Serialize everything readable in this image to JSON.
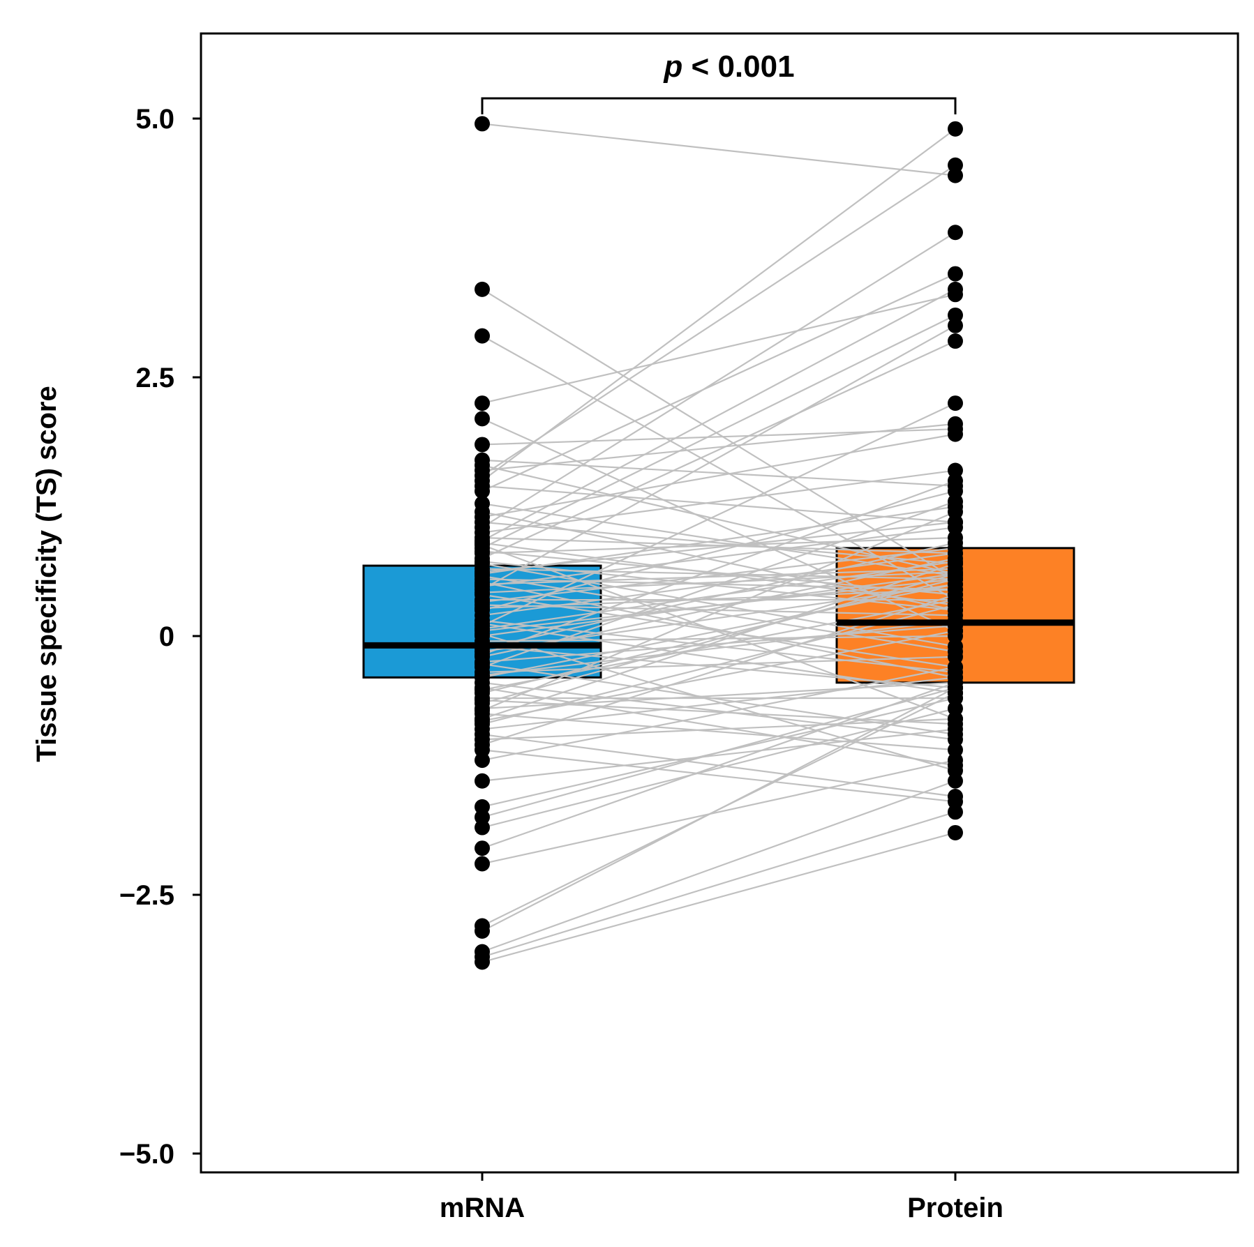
{
  "chart_data": {
    "type": "box",
    "title": "",
    "xlabel": "",
    "ylabel": "Tissue specificity (TS) score",
    "ylim": [
      -5.0,
      5.6
    ],
    "yticks": [
      5.0,
      2.5,
      0,
      -2.5,
      -5.0
    ],
    "ytick_labels": [
      "5.0",
      "2.5",
      "0",
      "−2.5",
      "−5.0"
    ],
    "categories": [
      "mRNA",
      "Protein"
    ],
    "significance": {
      "italic": "p",
      "text": " < 0.001"
    },
    "colors": {
      "mRNA": "#1b9ad6",
      "Protein": "#fd8125",
      "pair_line": "#c0c0c0",
      "point": "#000000",
      "median": "#000000"
    },
    "boxes": [
      {
        "name": "mRNA",
        "q1": -0.4,
        "median": -0.09,
        "q3": 0.68
      },
      {
        "name": "Protein",
        "q1": -0.45,
        "median": 0.13,
        "q3": 0.85
      }
    ],
    "pairs": [
      [
        4.95,
        4.45
      ],
      [
        3.35,
        0.55
      ],
      [
        2.9,
        0.35
      ],
      [
        2.25,
        3.3
      ],
      [
        2.1,
        0.05
      ],
      [
        1.85,
        2.0
      ],
      [
        1.7,
        1.45
      ],
      [
        1.65,
        0.6
      ],
      [
        1.55,
        4.55
      ],
      [
        1.5,
        4.9
      ],
      [
        1.45,
        1.1
      ],
      [
        1.4,
        3.5
      ],
      [
        1.2,
        0.25
      ],
      [
        1.15,
        1.95
      ],
      [
        1.1,
        0.7
      ],
      [
        1.05,
        3.9
      ],
      [
        1.0,
        1.6
      ],
      [
        0.95,
        0.8
      ],
      [
        0.9,
        0.3
      ],
      [
        0.85,
        3.1
      ],
      [
        0.8,
        0.95
      ],
      [
        0.75,
        2.85
      ],
      [
        0.7,
        -0.1
      ],
      [
        0.65,
        0.55
      ],
      [
        0.6,
        1.25
      ],
      [
        0.55,
        0.45
      ],
      [
        0.5,
        0.65
      ],
      [
        0.45,
        3.0
      ],
      [
        0.4,
        -0.3
      ],
      [
        0.35,
        0.35
      ],
      [
        0.3,
        0.2
      ],
      [
        0.25,
        1.4
      ],
      [
        0.2,
        0.8
      ],
      [
        0.15,
        -0.35
      ],
      [
        0.1,
        2.25
      ],
      [
        0.05,
        0.55
      ],
      [
        0.0,
        0.6
      ],
      [
        -0.05,
        0.0
      ],
      [
        -0.1,
        -0.5
      ],
      [
        -0.15,
        0.5
      ],
      [
        -0.2,
        0.75
      ],
      [
        -0.25,
        0.1
      ],
      [
        -0.3,
        1.3
      ],
      [
        -0.35,
        -0.2
      ],
      [
        -0.4,
        0.5
      ],
      [
        -0.45,
        -1.0
      ],
      [
        -0.5,
        -1.25
      ],
      [
        -0.55,
        0.55
      ],
      [
        -0.6,
        -0.6
      ],
      [
        -0.65,
        0.6
      ],
      [
        -0.7,
        -0.45
      ],
      [
        -0.75,
        -1.1
      ],
      [
        -0.8,
        0.7
      ],
      [
        -0.85,
        0.3
      ],
      [
        -0.9,
        -0.4
      ],
      [
        -0.95,
        -1.55
      ],
      [
        -1.0,
        -0.8
      ],
      [
        -1.1,
        -1.6
      ],
      [
        -1.2,
        -0.3
      ],
      [
        -1.4,
        -0.9
      ],
      [
        -1.65,
        -0.6
      ],
      [
        -1.75,
        -0.5
      ],
      [
        -1.85,
        -0.7
      ],
      [
        -2.05,
        -0.45
      ],
      [
        -2.2,
        -1.2
      ],
      [
        -2.8,
        -0.55
      ],
      [
        -2.85,
        -0.5
      ],
      [
        -3.05,
        -1.4
      ],
      [
        -3.1,
        -1.7
      ],
      [
        -3.15,
        -1.9
      ],
      [
        0.92,
        3.35
      ],
      [
        0.62,
        1.1
      ],
      [
        0.27,
        0.45
      ],
      [
        -0.12,
        0.9
      ],
      [
        -0.38,
        0.15
      ],
      [
        -0.62,
        -0.85
      ],
      [
        0.72,
        0.25
      ],
      [
        0.12,
        -0.55
      ],
      [
        -0.27,
        -0.95
      ],
      [
        0.48,
        1.05
      ],
      [
        0.82,
        0.4
      ],
      [
        -0.82,
        0.05
      ],
      [
        0.42,
        0.62
      ],
      [
        -0.52,
        0.35
      ],
      [
        0.02,
        -1.3
      ],
      [
        1.28,
        0.58
      ],
      [
        -1.05,
        0.4
      ],
      [
        0.58,
        -0.15
      ],
      [
        -0.18,
        1.5
      ],
      [
        0.33,
        0.85
      ],
      [
        1.6,
        2.05
      ],
      [
        0.88,
        -0.8
      ],
      [
        -0.72,
        1.2
      ],
      [
        0.07,
        0.72
      ],
      [
        0.52,
        -0.4
      ]
    ]
  }
}
